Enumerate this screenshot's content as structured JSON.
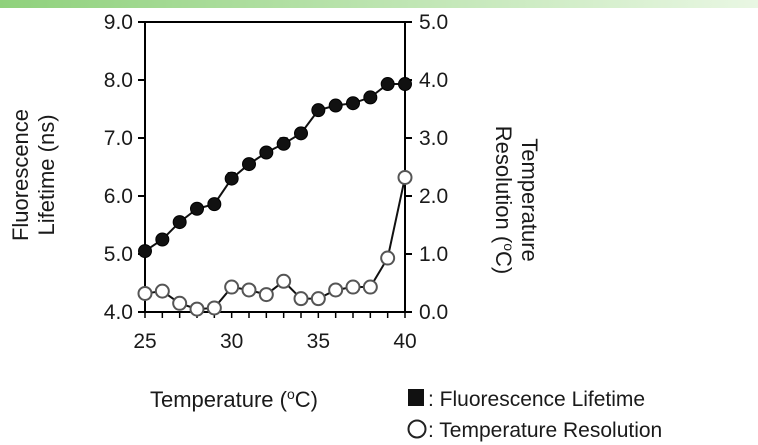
{
  "chart_data": {
    "type": "line",
    "x": [
      25,
      26,
      27,
      28,
      29,
      30,
      31,
      32,
      33,
      34,
      35,
      36,
      37,
      38,
      39,
      40
    ],
    "x_ticks": [
      "25",
      "30",
      "35",
      "40"
    ],
    "xlim": [
      25,
      40
    ],
    "xlabel": "Temperature (°C)",
    "ylabel_left": "Fluorescence Lifetime (ns)",
    "ylabel_right": "Temperature Resolution (°C)",
    "ylim_left": [
      4.0,
      9.0
    ],
    "ylim_right": [
      0.0,
      5.0
    ],
    "y_ticks_left": [
      "4.0",
      "5.0",
      "6.0",
      "7.0",
      "8.0",
      "9.0"
    ],
    "y_ticks_right": [
      "0.0",
      "1.0",
      "2.0",
      "3.0",
      "4.0",
      "5.0"
    ],
    "grid": false,
    "series": [
      {
        "name": "Fluorescence Lifetime",
        "axis": "left",
        "marker": "filled-circle",
        "values": [
          5.05,
          5.25,
          5.55,
          5.78,
          5.86,
          6.3,
          6.55,
          6.75,
          6.9,
          7.08,
          7.48,
          7.56,
          7.6,
          7.7,
          7.93,
          7.93
        ],
        "error": [
          0.05,
          0.05,
          0.05,
          0.05,
          0.05,
          0.1,
          0.06,
          0.07,
          0.1,
          0.05,
          0.05,
          0.05,
          0.05,
          0.06,
          0.06,
          0.06
        ]
      },
      {
        "name": "Temperature Resolution",
        "axis": "right",
        "marker": "open-circle",
        "values": [
          0.32,
          0.36,
          0.15,
          0.05,
          0.07,
          0.43,
          0.38,
          0.3,
          0.53,
          0.23,
          0.23,
          0.38,
          0.43,
          0.43,
          0.93,
          2.32
        ]
      }
    ],
    "legend": {
      "position": "bottom-right",
      "items": [
        {
          "symbol": "filled-square",
          "label": ": Fluorescence Lifetime"
        },
        {
          "symbol": "open-circle",
          "label": ": Temperature Resolution"
        }
      ]
    }
  },
  "labels": {
    "xlabel_main": "Temperature (",
    "xlabel_sup": "o",
    "xlabel_end": "C)",
    "ylabel_left_1": "Fluorescence",
    "ylabel_left_2": "Lifetime (ns)",
    "ylabel_right_1": "Temperature",
    "ylabel_right_2_main": "Resolution (",
    "ylabel_right_2_sup": "o",
    "ylabel_right_2_end": "C)"
  },
  "colors": {
    "filled": "#111111",
    "open_fill": "#ffffff",
    "open_stroke": "#555555",
    "axis": "#000000",
    "header_bar": "#8fd17c"
  }
}
